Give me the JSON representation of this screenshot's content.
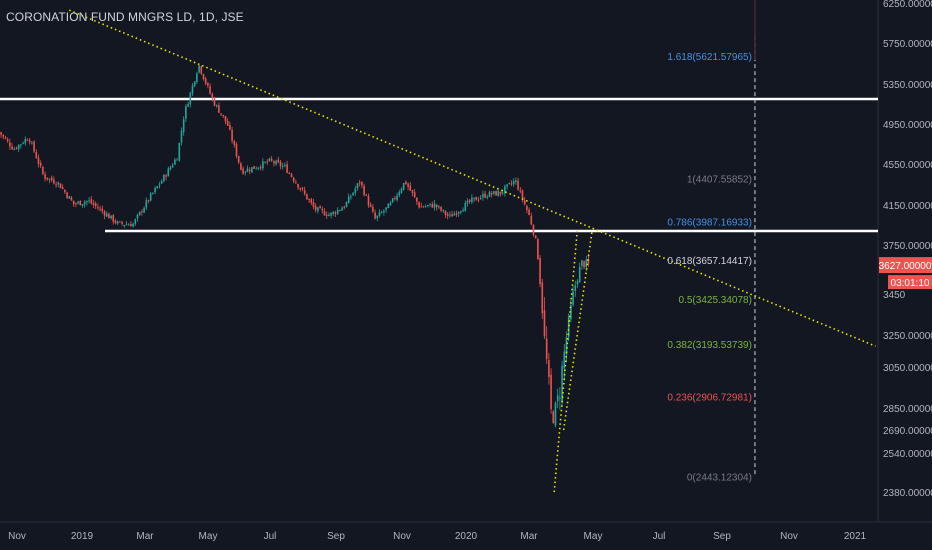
{
  "header": {
    "symbol_title": "CORONATION FUND MNGRS LD, 1D, JSE"
  },
  "colors": {
    "background": "#131722",
    "axis_text": "#b2b5be",
    "up_candle": "#26a69a",
    "down_candle": "#ef5350",
    "trendline": "#e6e600",
    "horizontal_line": "#ffffff",
    "price_label_bg": "#ef5350"
  },
  "chart_data": {
    "type": "candlestick",
    "title": "CORONATION FUND MNGRS LD, 1D, JSE",
    "y_axis": {
      "ticks": [
        6250,
        5750,
        5350,
        4950,
        4550,
        4150,
        3750,
        3450,
        3250,
        3050,
        2850,
        2690,
        2540,
        2380
      ],
      "tick_labels": [
        "6250.00000",
        "5750.00000",
        "5350.00000",
        "4950.00000",
        "4550.00000",
        "4150.00000",
        "3750.00000",
        "3450",
        "3250.00000",
        "3050.00000",
        "2850.00000",
        "2690.00000",
        "2540.00000",
        "2380.00000"
      ]
    },
    "x_axis": {
      "ticks": [
        {
          "label": "Nov",
          "date": "2018-11-01"
        },
        {
          "label": "2019",
          "date": "2019-01-01"
        },
        {
          "label": "Mar",
          "date": "2019-03-01"
        },
        {
          "label": "May",
          "date": "2019-05-01"
        },
        {
          "label": "Jul",
          "date": "2019-07-01"
        },
        {
          "label": "Sep",
          "date": "2019-09-01"
        },
        {
          "label": "Nov",
          "date": "2019-11-01"
        },
        {
          "label": "2020",
          "date": "2020-01-01"
        },
        {
          "label": "Mar",
          "date": "2020-03-01"
        },
        {
          "label": "May",
          "date": "2020-05-01"
        },
        {
          "label": "Jul",
          "date": "2020-07-01"
        },
        {
          "label": "Sep",
          "date": "2020-09-01"
        },
        {
          "label": "Nov",
          "date": "2020-11-01"
        },
        {
          "label": "2021",
          "date": "2021-01-01"
        }
      ]
    },
    "series": [
      {
        "name": "",
        "closes": [
          {
            "date": "2018-10-15",
            "close": 4870
          },
          {
            "date": "2018-10-29",
            "close": 4700
          },
          {
            "date": "2018-11-12",
            "close": 4820
          },
          {
            "date": "2018-11-26",
            "close": 4430
          },
          {
            "date": "2018-12-10",
            "close": 4360
          },
          {
            "date": "2018-12-24",
            "close": 4160
          },
          {
            "date": "2019-01-07",
            "close": 4190
          },
          {
            "date": "2019-01-21",
            "close": 4080
          },
          {
            "date": "2019-02-04",
            "close": 3960
          },
          {
            "date": "2019-02-18",
            "close": 3960
          },
          {
            "date": "2019-03-04",
            "close": 4200
          },
          {
            "date": "2019-03-18",
            "close": 4400
          },
          {
            "date": "2019-04-01",
            "close": 4620
          },
          {
            "date": "2019-04-08",
            "close": 5050
          },
          {
            "date": "2019-04-22",
            "close": 5540
          },
          {
            "date": "2019-05-06",
            "close": 5180
          },
          {
            "date": "2019-05-20",
            "close": 4950
          },
          {
            "date": "2019-06-03",
            "close": 4480
          },
          {
            "date": "2019-06-17",
            "close": 4520
          },
          {
            "date": "2019-07-01",
            "close": 4580
          },
          {
            "date": "2019-07-15",
            "close": 4520
          },
          {
            "date": "2019-07-29",
            "close": 4320
          },
          {
            "date": "2019-08-12",
            "close": 4110
          },
          {
            "date": "2019-08-26",
            "close": 4050
          },
          {
            "date": "2019-09-09",
            "close": 4140
          },
          {
            "date": "2019-09-23",
            "close": 4380
          },
          {
            "date": "2019-10-07",
            "close": 4010
          },
          {
            "date": "2019-10-21",
            "close": 4150
          },
          {
            "date": "2019-11-04",
            "close": 4380
          },
          {
            "date": "2019-11-18",
            "close": 4130
          },
          {
            "date": "2019-12-02",
            "close": 4150
          },
          {
            "date": "2019-12-16",
            "close": 4030
          },
          {
            "date": "2020-01-06",
            "close": 4190
          },
          {
            "date": "2020-01-20",
            "close": 4250
          },
          {
            "date": "2020-02-03",
            "close": 4270
          },
          {
            "date": "2020-02-17",
            "close": 4390
          },
          {
            "date": "2020-03-02",
            "close": 4020
          },
          {
            "date": "2020-03-09",
            "close": 3720
          },
          {
            "date": "2020-03-16",
            "close": 3200
          },
          {
            "date": "2020-03-23",
            "close": 2760
          },
          {
            "date": "2020-03-30",
            "close": 2920
          },
          {
            "date": "2020-04-06",
            "close": 3250
          },
          {
            "date": "2020-04-13",
            "close": 3480
          },
          {
            "date": "2020-04-20",
            "close": 3640
          },
          {
            "date": "2020-04-27",
            "close": 3627
          }
        ]
      }
    ],
    "horizontal_lines": [
      {
        "price": 5200
      },
      {
        "price": 3890
      }
    ],
    "trendlines": [
      {
        "from": {
          "date": "2018-12-20",
          "price": 6160
        },
        "to": {
          "date": "2021-01-20",
          "price": 3180
        }
      },
      {
        "from": {
          "date": "2020-03-25",
          "price": 2380
        },
        "to": {
          "date": "2020-04-16",
          "price": 3890
        }
      },
      {
        "from": {
          "date": "2020-04-03",
          "price": 2690
        },
        "to": {
          "date": "2020-04-30",
          "price": 3880
        }
      }
    ],
    "fibonacci": {
      "date": "2020-10-01",
      "levels": [
        {
          "label": "1.618(5621.57965)",
          "price": 5621.57965,
          "color": "#4a90e2"
        },
        {
          "label": "1(4407.55852)",
          "price": 4407.55852,
          "color": "#787b86"
        },
        {
          "label": "0.786(3987.16933)",
          "price": 3987.16933,
          "color": "#4a90e2"
        },
        {
          "label": "0.618(3657.14417)",
          "price": 3657.14417,
          "color": "#d1d4dc"
        },
        {
          "label": "0.5(3425.34078)",
          "price": 3425.34078,
          "color": "#7cb342"
        },
        {
          "label": "0.382(3193.53739)",
          "price": 3193.53739,
          "color": "#7cb342"
        },
        {
          "label": "0.236(2906.72981)",
          "price": 2906.72981,
          "color": "#ef5350"
        },
        {
          "label": "0(2443.12304)",
          "price": 2443.12304,
          "color": "#787b86"
        }
      ]
    },
    "last_price": {
      "label": "3627.00000",
      "price": 3627
    },
    "countdown": {
      "label": "03:01:10"
    }
  }
}
